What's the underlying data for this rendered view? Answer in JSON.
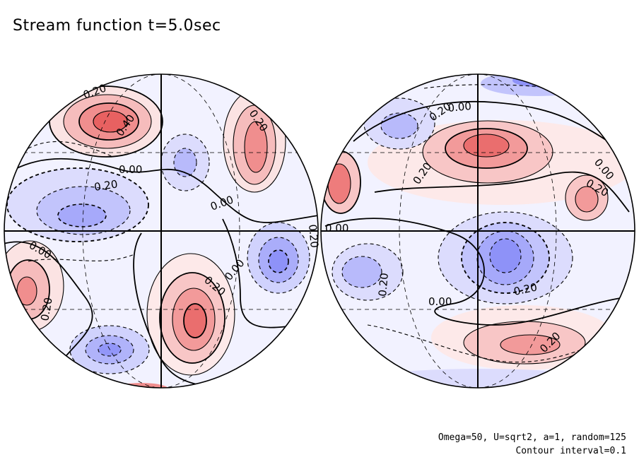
{
  "title": "Stream function t=5.0sec",
  "params_text": "Omega=50, U=sqrt2, a=1, random=125",
  "interval_text": "Contour interval=0.1",
  "colors": {
    "positive": "#e8383a",
    "negative": "#3c46e6",
    "contour": "#000000"
  },
  "hemispheres": [
    {
      "name": "left-hemisphere",
      "labels": [
        "0.20",
        "0.40",
        "0.00",
        "0.20",
        "0.00",
        "0.20",
        "0.00",
        "0.20",
        "0.20",
        "0.00",
        "0.20"
      ],
      "label_signs": [
        "pos",
        "pos",
        "zero",
        "neg",
        "zero",
        "pos",
        "zero",
        "pos",
        "pos",
        "zero",
        "neg"
      ],
      "blobs": [
        {
          "sign": 1,
          "level": 0.45
        },
        {
          "sign": 1,
          "level": 0.3
        },
        {
          "sign": -1,
          "level": 0.2
        },
        {
          "sign": -1,
          "level": 0.3
        },
        {
          "sign": 1,
          "level": 0.25
        },
        {
          "sign": 1,
          "level": 0.3
        },
        {
          "sign": -1,
          "level": 0.3
        },
        {
          "sign": -1,
          "level": 0.25
        },
        {
          "sign": 1,
          "level": 0.35
        }
      ]
    },
    {
      "name": "right-hemisphere",
      "labels": [
        "0.20",
        "0.00",
        "0.20",
        "0.00",
        "0.20",
        "0.00",
        "0.20",
        "0.20",
        "0.00",
        "0.20"
      ],
      "label_signs": [
        "neg",
        "zero",
        "pos",
        "zero",
        "pos",
        "zero",
        "neg",
        "neg",
        "zero",
        "pos"
      ],
      "blobs": [
        {
          "sign": 1,
          "level": 0.4
        },
        {
          "sign": 1,
          "level": 0.25
        },
        {
          "sign": 1,
          "level": 0.3
        },
        {
          "sign": -1,
          "level": 0.2
        },
        {
          "sign": -1,
          "level": 0.4
        },
        {
          "sign": -1,
          "level": 0.2
        },
        {
          "sign": 1,
          "level": 0.25
        },
        {
          "sign": -1,
          "level": 0.25
        }
      ]
    }
  ]
}
